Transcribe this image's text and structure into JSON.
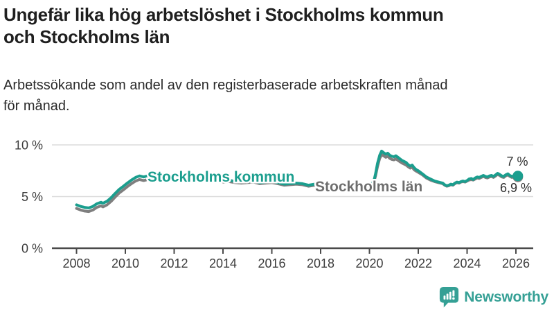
{
  "header": {
    "title_lines": [
      "Ungefär lika hög arbetslöshet i Stockholms kommun",
      "och Stockholms län"
    ],
    "subtitle_lines": [
      "Arbetssökande som andel av den registerbaserade arbetskraften månad",
      "för månad."
    ]
  },
  "chart_data": {
    "type": "line",
    "title": "Ungefär lika hög arbetslöshet i Stockholms kommun och Stockholms län",
    "subtitle": "Arbetssökande som andel av den registerbaserade arbetskraften månad för månad.",
    "unit": "%",
    "grid": true,
    "legend_position": "inline-labels-on-lines",
    "ylim": [
      0,
      10.5
    ],
    "x_range": [
      2008,
      2026.08
    ],
    "y_ticks": [
      {
        "value": 0,
        "label": "0 %"
      },
      {
        "value": 5,
        "label": "5 %"
      },
      {
        "value": 10,
        "label": "10 %"
      }
    ],
    "x_ticks": [
      2008,
      2010,
      2012,
      2014,
      2016,
      2018,
      2020,
      2022,
      2024,
      2026
    ],
    "series": [
      {
        "name": "Stockholms kommun",
        "color": "#1b9e8e",
        "label_color": "#1b9e8e",
        "end_label": "7 %",
        "points": [
          [
            2008.0,
            4.2
          ],
          [
            2008.17,
            4.05
          ],
          [
            2008.33,
            3.95
          ],
          [
            2008.5,
            3.9
          ],
          [
            2008.67,
            4.05
          ],
          [
            2008.83,
            4.3
          ],
          [
            2009.0,
            4.45
          ],
          [
            2009.08,
            4.35
          ],
          [
            2009.25,
            4.55
          ],
          [
            2009.42,
            4.9
          ],
          [
            2009.58,
            5.3
          ],
          [
            2009.75,
            5.7
          ],
          [
            2009.92,
            6.0
          ],
          [
            2010.08,
            6.3
          ],
          [
            2010.25,
            6.6
          ],
          [
            2010.42,
            6.85
          ],
          [
            2010.58,
            7.0
          ],
          [
            2010.75,
            6.9
          ],
          [
            2010.92,
            7.0
          ],
          [
            2011.08,
            7.1
          ],
          [
            2011.25,
            7.25
          ],
          [
            2011.42,
            7.1
          ],
          [
            2011.58,
            7.15
          ],
          [
            2011.75,
            7.0
          ],
          [
            2011.92,
            6.95
          ],
          [
            2012.25,
            7.0
          ],
          [
            2012.5,
            6.9
          ],
          [
            2012.75,
            6.85
          ],
          [
            2013.0,
            6.8
          ],
          [
            2013.25,
            6.85
          ],
          [
            2013.5,
            6.7
          ],
          [
            2013.75,
            6.6
          ],
          [
            2014.0,
            6.55
          ],
          [
            2014.25,
            6.6
          ],
          [
            2014.5,
            6.45
          ],
          [
            2014.75,
            6.4
          ],
          [
            2015.0,
            6.45
          ],
          [
            2015.25,
            6.5
          ],
          [
            2015.5,
            6.35
          ],
          [
            2015.75,
            6.4
          ],
          [
            2016.0,
            6.45
          ],
          [
            2016.25,
            6.35
          ],
          [
            2016.5,
            6.2
          ],
          [
            2016.75,
            6.25
          ],
          [
            2017.0,
            6.3
          ],
          [
            2017.25,
            6.25
          ],
          [
            2017.5,
            6.1
          ],
          [
            2017.75,
            6.2
          ],
          [
            2018.0,
            6.2
          ],
          [
            2018.25,
            6.15
          ],
          [
            2018.5,
            6.0
          ],
          [
            2018.75,
            6.1
          ],
          [
            2019.0,
            6.05
          ],
          [
            2019.25,
            6.0
          ],
          [
            2019.5,
            5.95
          ],
          [
            2019.75,
            6.05
          ],
          [
            2020.0,
            6.1
          ],
          [
            2020.17,
            6.4
          ],
          [
            2020.25,
            7.2
          ],
          [
            2020.33,
            8.2
          ],
          [
            2020.42,
            9.0
          ],
          [
            2020.5,
            9.4
          ],
          [
            2020.58,
            9.25
          ],
          [
            2020.67,
            9.1
          ],
          [
            2020.75,
            9.2
          ],
          [
            2020.83,
            9.0
          ],
          [
            2020.92,
            8.9
          ],
          [
            2021.0,
            8.85
          ],
          [
            2021.08,
            8.95
          ],
          [
            2021.17,
            8.8
          ],
          [
            2021.33,
            8.5
          ],
          [
            2021.5,
            8.3
          ],
          [
            2021.58,
            8.1
          ],
          [
            2021.67,
            7.95
          ],
          [
            2021.75,
            8.05
          ],
          [
            2021.83,
            7.8
          ],
          [
            2021.92,
            7.6
          ],
          [
            2022.0,
            7.5
          ],
          [
            2022.17,
            7.2
          ],
          [
            2022.33,
            6.9
          ],
          [
            2022.5,
            6.7
          ],
          [
            2022.67,
            6.5
          ],
          [
            2022.83,
            6.4
          ],
          [
            2023.0,
            6.3
          ],
          [
            2023.08,
            6.15
          ],
          [
            2023.17,
            6.05
          ],
          [
            2023.25,
            6.1
          ],
          [
            2023.33,
            6.2
          ],
          [
            2023.42,
            6.15
          ],
          [
            2023.5,
            6.3
          ],
          [
            2023.58,
            6.4
          ],
          [
            2023.67,
            6.35
          ],
          [
            2023.75,
            6.45
          ],
          [
            2023.83,
            6.5
          ],
          [
            2023.92,
            6.45
          ],
          [
            2024.0,
            6.55
          ],
          [
            2024.08,
            6.7
          ],
          [
            2024.17,
            6.75
          ],
          [
            2024.25,
            6.65
          ],
          [
            2024.33,
            6.8
          ],
          [
            2024.42,
            6.9
          ],
          [
            2024.5,
            6.85
          ],
          [
            2024.58,
            6.95
          ],
          [
            2024.67,
            7.05
          ],
          [
            2024.75,
            6.95
          ],
          [
            2024.83,
            6.9
          ],
          [
            2024.92,
            7.0
          ],
          [
            2025.0,
            7.05
          ],
          [
            2025.08,
            6.95
          ],
          [
            2025.17,
            7.1
          ],
          [
            2025.25,
            7.25
          ],
          [
            2025.33,
            7.15
          ],
          [
            2025.42,
            7.0
          ],
          [
            2025.5,
            6.95
          ],
          [
            2025.58,
            7.1
          ],
          [
            2025.67,
            7.2
          ],
          [
            2025.75,
            7.05
          ],
          [
            2025.83,
            6.95
          ],
          [
            2025.92,
            7.0
          ],
          [
            2026.08,
            7.0
          ]
        ]
      },
      {
        "name": "Stockholms län",
        "color": "#7f7f7f",
        "label_color": "#6e6e6e",
        "end_label": "6,9 %",
        "points": [
          [
            2008.0,
            3.85
          ],
          [
            2008.17,
            3.7
          ],
          [
            2008.33,
            3.6
          ],
          [
            2008.5,
            3.55
          ],
          [
            2008.67,
            3.7
          ],
          [
            2008.83,
            3.95
          ],
          [
            2009.0,
            4.1
          ],
          [
            2009.08,
            4.0
          ],
          [
            2009.25,
            4.2
          ],
          [
            2009.42,
            4.55
          ],
          [
            2009.58,
            4.95
          ],
          [
            2009.75,
            5.35
          ],
          [
            2009.92,
            5.65
          ],
          [
            2010.08,
            5.95
          ],
          [
            2010.25,
            6.25
          ],
          [
            2010.42,
            6.5
          ],
          [
            2010.58,
            6.65
          ],
          [
            2010.75,
            6.55
          ],
          [
            2010.92,
            6.65
          ],
          [
            2011.08,
            6.75
          ],
          [
            2011.25,
            6.9
          ],
          [
            2011.42,
            6.8
          ],
          [
            2011.58,
            6.85
          ],
          [
            2011.75,
            6.7
          ],
          [
            2011.92,
            6.65
          ],
          [
            2012.25,
            6.75
          ],
          [
            2012.5,
            6.7
          ],
          [
            2012.75,
            6.65
          ],
          [
            2013.0,
            6.6
          ],
          [
            2013.25,
            6.65
          ],
          [
            2013.5,
            6.55
          ],
          [
            2013.75,
            6.45
          ],
          [
            2014.0,
            6.4
          ],
          [
            2014.25,
            6.45
          ],
          [
            2014.5,
            6.35
          ],
          [
            2014.75,
            6.3
          ],
          [
            2015.0,
            6.35
          ],
          [
            2015.25,
            6.4
          ],
          [
            2015.5,
            6.25
          ],
          [
            2015.75,
            6.3
          ],
          [
            2016.0,
            6.35
          ],
          [
            2016.25,
            6.25
          ],
          [
            2016.5,
            6.1
          ],
          [
            2016.75,
            6.15
          ],
          [
            2017.0,
            6.2
          ],
          [
            2017.25,
            6.15
          ],
          [
            2017.5,
            6.0
          ],
          [
            2017.75,
            6.1
          ],
          [
            2018.0,
            6.1
          ],
          [
            2018.25,
            6.05
          ],
          [
            2018.5,
            5.9
          ],
          [
            2018.75,
            6.0
          ],
          [
            2019.0,
            5.95
          ],
          [
            2019.25,
            5.9
          ],
          [
            2019.5,
            5.85
          ],
          [
            2019.75,
            5.95
          ],
          [
            2020.0,
            6.0
          ],
          [
            2020.17,
            6.3
          ],
          [
            2020.25,
            7.0
          ],
          [
            2020.33,
            7.9
          ],
          [
            2020.42,
            8.7
          ],
          [
            2020.5,
            9.05
          ],
          [
            2020.58,
            8.95
          ],
          [
            2020.67,
            8.8
          ],
          [
            2020.75,
            8.9
          ],
          [
            2020.83,
            8.7
          ],
          [
            2020.92,
            8.6
          ],
          [
            2021.0,
            8.55
          ],
          [
            2021.08,
            8.65
          ],
          [
            2021.17,
            8.5
          ],
          [
            2021.33,
            8.25
          ],
          [
            2021.5,
            8.05
          ],
          [
            2021.58,
            7.9
          ],
          [
            2021.67,
            7.75
          ],
          [
            2021.75,
            7.85
          ],
          [
            2021.83,
            7.6
          ],
          [
            2021.92,
            7.45
          ],
          [
            2022.0,
            7.35
          ],
          [
            2022.17,
            7.1
          ],
          [
            2022.33,
            6.8
          ],
          [
            2022.5,
            6.6
          ],
          [
            2022.67,
            6.45
          ],
          [
            2022.83,
            6.35
          ],
          [
            2023.0,
            6.25
          ],
          [
            2023.08,
            6.1
          ],
          [
            2023.17,
            6.0
          ],
          [
            2023.25,
            6.05
          ],
          [
            2023.33,
            6.15
          ],
          [
            2023.42,
            6.1
          ],
          [
            2023.5,
            6.25
          ],
          [
            2023.58,
            6.35
          ],
          [
            2023.67,
            6.3
          ],
          [
            2023.75,
            6.4
          ],
          [
            2023.83,
            6.45
          ],
          [
            2023.92,
            6.4
          ],
          [
            2024.0,
            6.5
          ],
          [
            2024.08,
            6.6
          ],
          [
            2024.17,
            6.65
          ],
          [
            2024.25,
            6.6
          ],
          [
            2024.33,
            6.7
          ],
          [
            2024.42,
            6.8
          ],
          [
            2024.5,
            6.75
          ],
          [
            2024.58,
            6.85
          ],
          [
            2024.67,
            6.95
          ],
          [
            2024.75,
            6.85
          ],
          [
            2024.83,
            6.8
          ],
          [
            2024.92,
            6.9
          ],
          [
            2025.0,
            6.95
          ],
          [
            2025.08,
            6.85
          ],
          [
            2025.17,
            7.0
          ],
          [
            2025.25,
            7.15
          ],
          [
            2025.33,
            7.05
          ],
          [
            2025.42,
            6.9
          ],
          [
            2025.5,
            6.85
          ],
          [
            2025.58,
            7.0
          ],
          [
            2025.67,
            7.1
          ],
          [
            2025.75,
            6.95
          ],
          [
            2025.83,
            6.85
          ],
          [
            2025.92,
            6.9
          ],
          [
            2026.08,
            6.9
          ]
        ]
      }
    ]
  },
  "branding": {
    "logo_text": "Newsworthy",
    "logo_icon": "bar-chart-speech-bubble-icon",
    "color": "#35a095"
  }
}
